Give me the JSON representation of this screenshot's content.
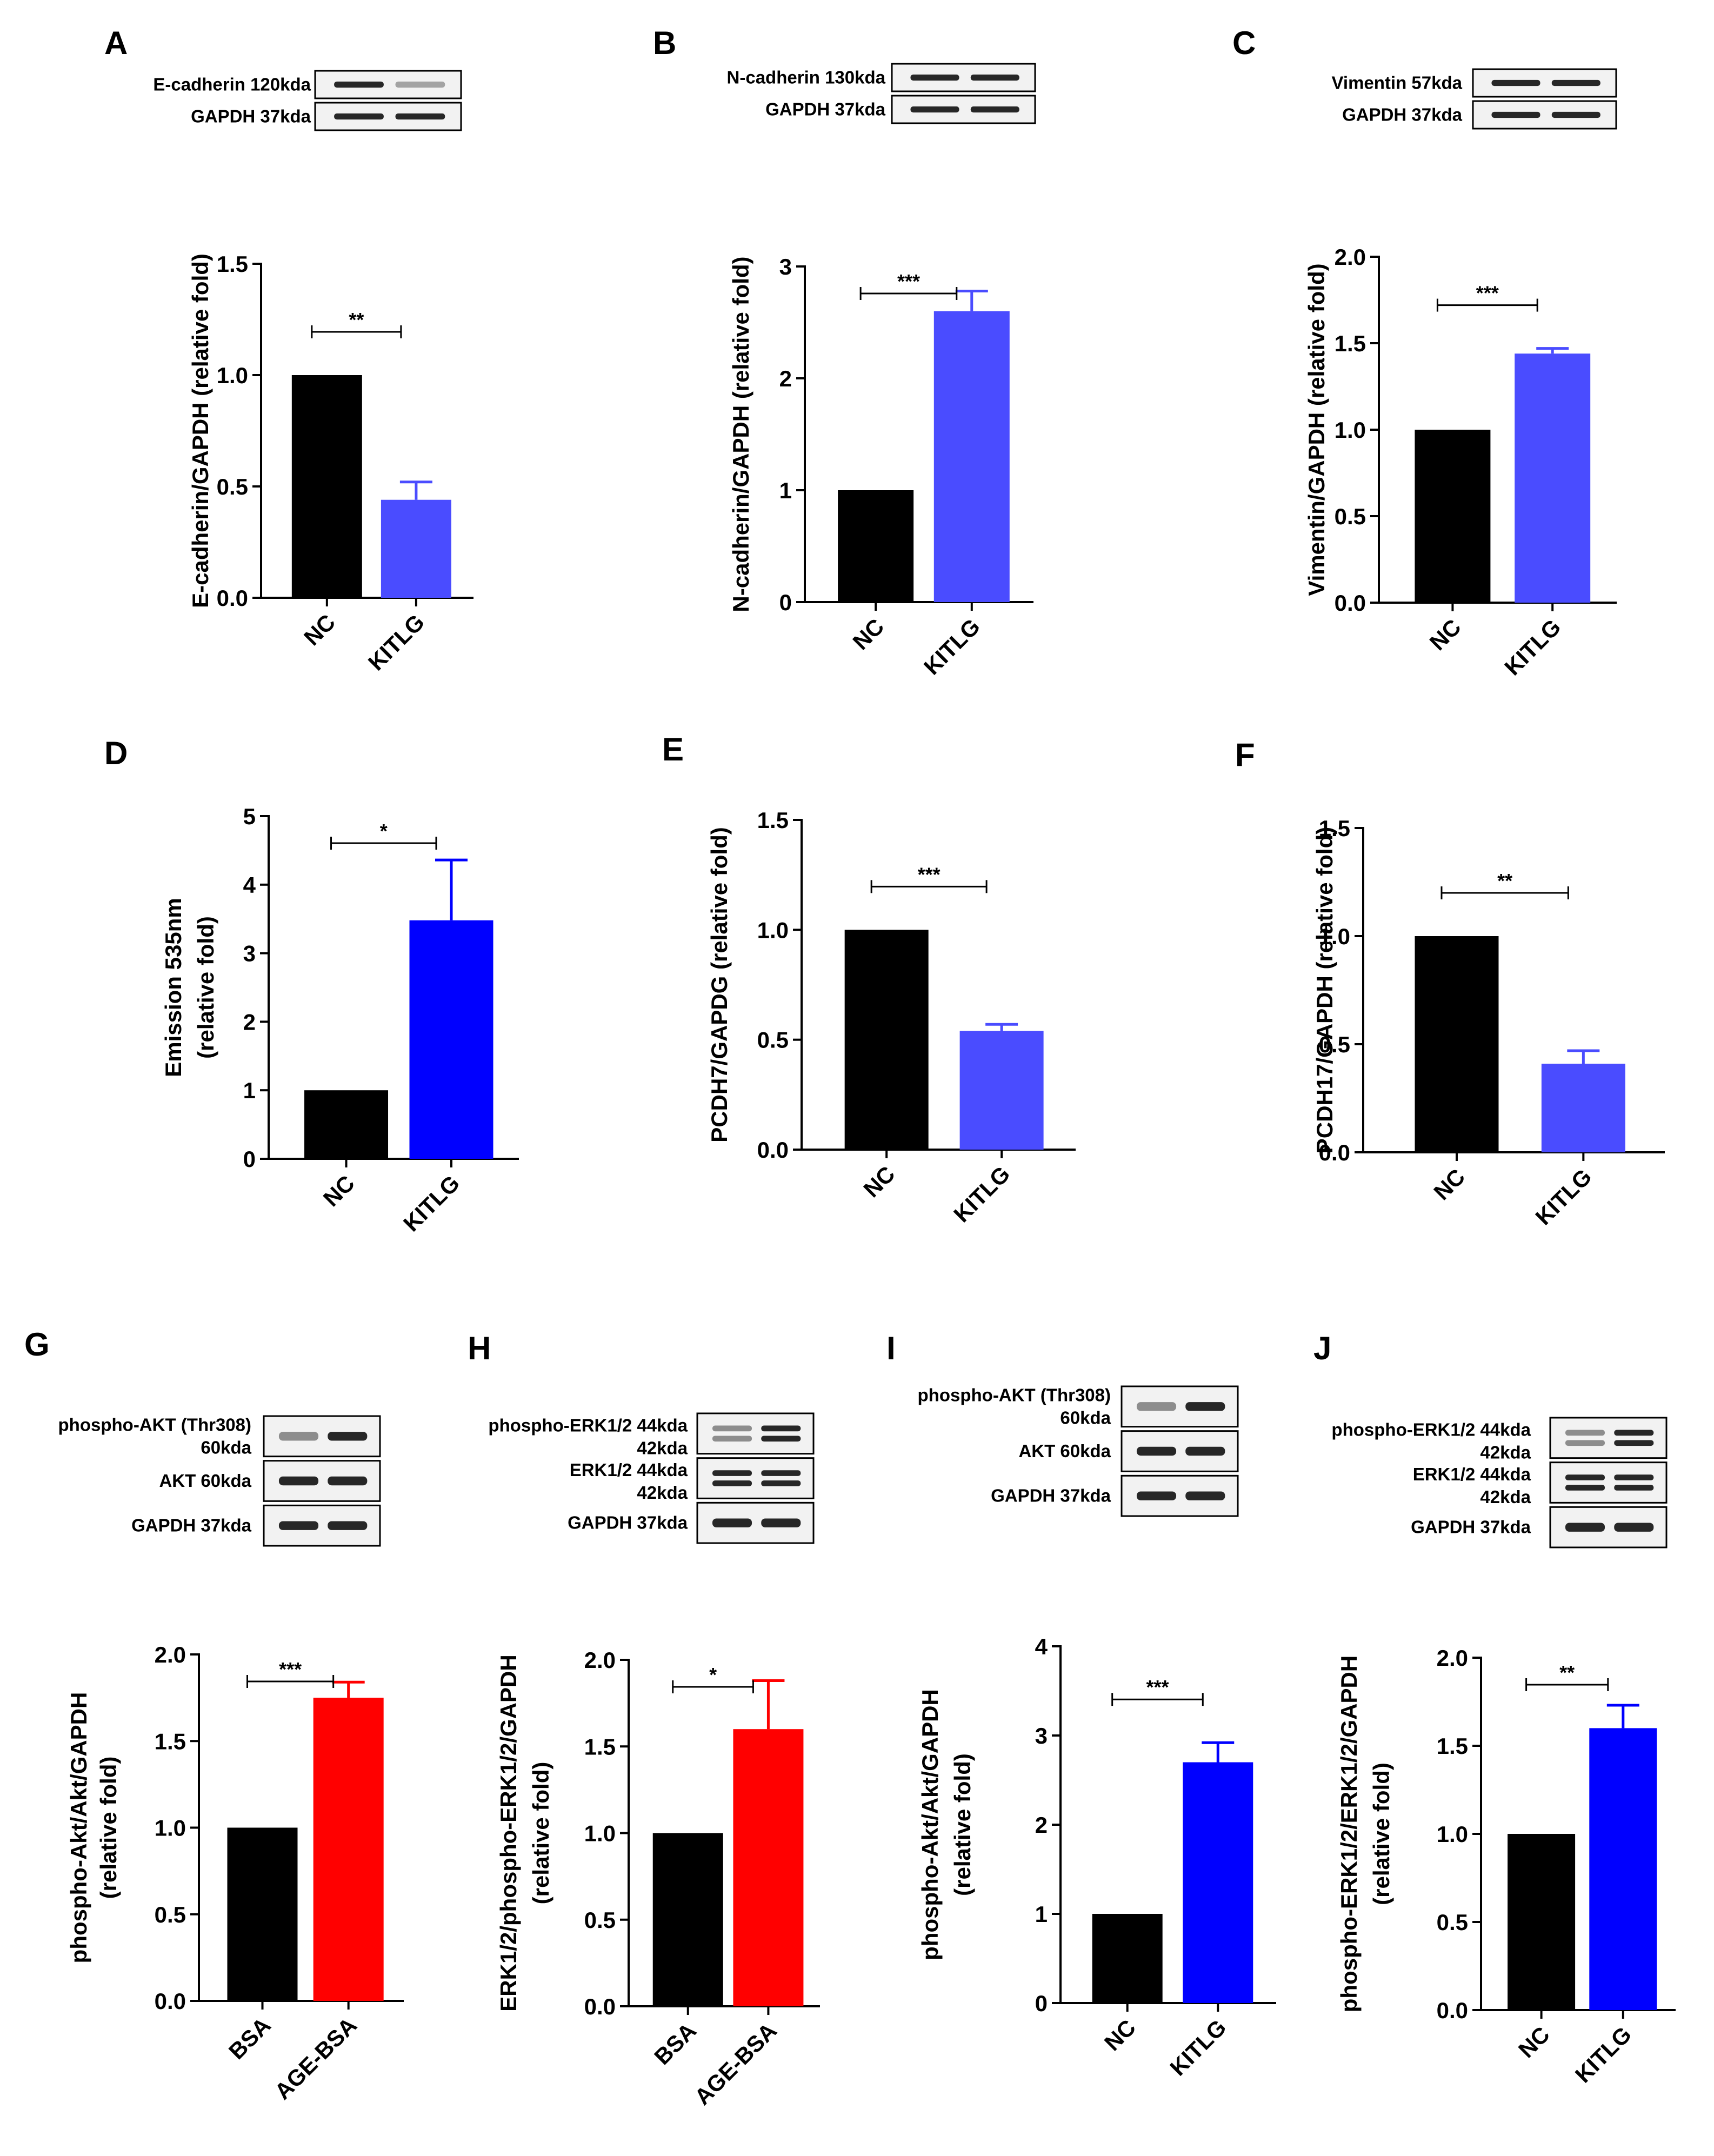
{
  "chart_data": [
    {
      "id": "A",
      "label": "A",
      "type": "bar",
      "categories": [
        "NC",
        "KITLG"
      ],
      "values": [
        1.0,
        0.44
      ],
      "errors": [
        0.0,
        0.08
      ],
      "colors": [
        "#000000",
        "#4a4cff"
      ],
      "ylabel": [
        "E-cadherin/GAPDH (relative fold)"
      ],
      "ylim": [
        0,
        1.5
      ],
      "yticks": [
        "0.0",
        "0.5",
        "1.0",
        "1.5"
      ],
      "significance": "**",
      "blot": {
        "rows": [
          {
            "protein": "E-cadherin",
            "size": "120kda"
          },
          {
            "protein": "GAPDH",
            "size": "37kda"
          }
        ]
      }
    },
    {
      "id": "B",
      "label": "B",
      "type": "bar",
      "categories": [
        "NC",
        "KITLG"
      ],
      "values": [
        1.0,
        2.6
      ],
      "errors": [
        0.0,
        0.18
      ],
      "colors": [
        "#000000",
        "#4a4cff"
      ],
      "ylabel": [
        "N-cadherin/GAPDH (relative fold)"
      ],
      "ylim": [
        0,
        3
      ],
      "yticks": [
        "0",
        "1",
        "2",
        "3"
      ],
      "significance": "***",
      "blot": {
        "rows": [
          {
            "protein": "N-cadherin",
            "size": "130kda"
          },
          {
            "protein": "GAPDH",
            "size": "37kda"
          }
        ]
      }
    },
    {
      "id": "C",
      "label": "C",
      "type": "bar",
      "categories": [
        "NC",
        "KITLG"
      ],
      "values": [
        1.0,
        1.44
      ],
      "errors": [
        0.0,
        0.03
      ],
      "colors": [
        "#000000",
        "#4a4cff"
      ],
      "ylabel": [
        "Vimentin/GAPDH (relative fold)"
      ],
      "ylim": [
        0,
        2.0
      ],
      "yticks": [
        "0.0",
        "0.5",
        "1.0",
        "1.5",
        "2.0"
      ],
      "significance": "***",
      "blot": {
        "rows": [
          {
            "protein": "Vimentin",
            "size": "57kda"
          },
          {
            "protein": "GAPDH",
            "size": "37kda"
          }
        ]
      }
    },
    {
      "id": "D",
      "label": "D",
      "type": "bar",
      "categories": [
        "NC",
        "KITLG"
      ],
      "values": [
        1.0,
        3.48
      ],
      "errors": [
        0.0,
        0.88
      ],
      "colors": [
        "#000000",
        "#0000ff"
      ],
      "ylabel": [
        "Emission 535nm",
        "(relative fold)"
      ],
      "ylim": [
        0,
        5
      ],
      "yticks": [
        "0",
        "1",
        "2",
        "3",
        "4",
        "5"
      ],
      "significance": "*"
    },
    {
      "id": "E",
      "label": "E",
      "type": "bar",
      "categories": [
        "NC",
        "KITLG"
      ],
      "values": [
        1.0,
        0.54
      ],
      "errors": [
        0.0,
        0.03
      ],
      "colors": [
        "#000000",
        "#4a4cff"
      ],
      "ylabel": [
        "PCDH7/GAPDG (relative fold)"
      ],
      "ylim": [
        0,
        1.5
      ],
      "yticks": [
        "0.0",
        "0.5",
        "1.0",
        "1.5"
      ],
      "significance": "***"
    },
    {
      "id": "F",
      "label": "F",
      "type": "bar",
      "categories": [
        "NC",
        "KITLG"
      ],
      "values": [
        1.0,
        0.41
      ],
      "errors": [
        0.0,
        0.06
      ],
      "colors": [
        "#000000",
        "#4a4cff"
      ],
      "ylabel": [
        "PCDH17/GAPDH (relative fold)"
      ],
      "ylim": [
        0,
        1.5
      ],
      "yticks": [
        "0.0",
        "0.5",
        "1.0",
        "1.5"
      ],
      "significance": "**"
    },
    {
      "id": "G",
      "label": "G",
      "type": "bar",
      "categories": [
        "BSA",
        "AGE-BSA"
      ],
      "values": [
        1.0,
        1.75
      ],
      "errors": [
        0.0,
        0.09
      ],
      "colors": [
        "#000000",
        "#ff0000"
      ],
      "ylabel": [
        "phospho-Akt/Akt/GAPDH",
        "(relative fold)"
      ],
      "ylim": [
        0,
        2.0
      ],
      "yticks": [
        "0.0",
        "0.5",
        "1.0",
        "1.5",
        "2.0"
      ],
      "significance": "***",
      "blot": {
        "rows": [
          {
            "protein": "phospho-AKT (Thr308)",
            "size": "60kda"
          },
          {
            "protein": "AKT",
            "size": "60kda"
          },
          {
            "protein": "GAPDH",
            "size": "37kda"
          }
        ]
      }
    },
    {
      "id": "H",
      "label": "H",
      "type": "bar",
      "categories": [
        "BSA",
        "AGE-BSA"
      ],
      "values": [
        1.0,
        1.6
      ],
      "errors": [
        0.0,
        0.28
      ],
      "colors": [
        "#000000",
        "#ff0000"
      ],
      "ylabel": [
        "ERK1/2/phospho-ERK1/2/GAPDH",
        "(relative fold)"
      ],
      "ylim": [
        0,
        2.0
      ],
      "yticks": [
        "0.0",
        "0.5",
        "1.0",
        "1.5",
        "2.0"
      ],
      "significance": "*",
      "blot": {
        "rows": [
          {
            "protein": "phospho-ERK1/2",
            "size": "44kda",
            "size2": "42kda"
          },
          {
            "protein": "ERK1/2",
            "size": "44kda",
            "size2": "42kda"
          },
          {
            "protein": "GAPDH",
            "size": "37kda"
          }
        ]
      }
    },
    {
      "id": "I",
      "label": "I",
      "type": "bar",
      "categories": [
        "NC",
        "KITLG"
      ],
      "values": [
        1.0,
        2.7
      ],
      "errors": [
        0.0,
        0.22
      ],
      "colors": [
        "#000000",
        "#0000ff"
      ],
      "ylabel": [
        "phospho-Akt/Akt/GAPDH",
        "(relative fold)"
      ],
      "ylim": [
        0,
        4
      ],
      "yticks": [
        "0",
        "1",
        "2",
        "3",
        "4"
      ],
      "significance": "***",
      "blot": {
        "rows": [
          {
            "protein": "phospho-AKT (Thr308)",
            "size": "60kda"
          },
          {
            "protein": "AKT",
            "size": "60kda"
          },
          {
            "protein": "GAPDH",
            "size": "37kda"
          }
        ]
      }
    },
    {
      "id": "J",
      "label": "J",
      "type": "bar",
      "categories": [
        "NC",
        "KITLG"
      ],
      "values": [
        1.0,
        1.6
      ],
      "errors": [
        0.0,
        0.13
      ],
      "colors": [
        "#000000",
        "#0000ff"
      ],
      "ylabel": [
        "phospho-ERK1/2/ERK1/2/GAPDH",
        "(relative fold)"
      ],
      "ylim": [
        0,
        2.0
      ],
      "yticks": [
        "0.0",
        "0.5",
        "1.0",
        "1.5",
        "2.0"
      ],
      "significance": "**",
      "blot": {
        "rows": [
          {
            "protein": "phospho-ERK1/2",
            "size": "44kda",
            "size2": "42kda"
          },
          {
            "protein": "ERK1/2",
            "size": "44kda",
            "size2": "42kda"
          },
          {
            "protein": "GAPDH",
            "size": "37kda"
          }
        ]
      }
    }
  ]
}
